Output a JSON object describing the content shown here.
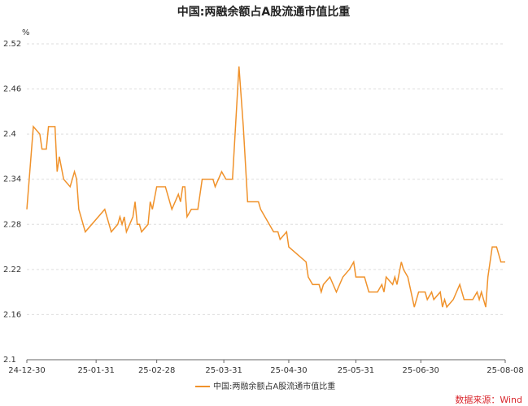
{
  "chart_data": {
    "type": "line",
    "title": "中国:两融余额占A股流通市值比重",
    "y_unit": "%",
    "source": "数据来源：Wind",
    "x": [
      0,
      3,
      6,
      7,
      9,
      10,
      13,
      14,
      15,
      17,
      20,
      22,
      23,
      24,
      27,
      36,
      39,
      42,
      43,
      44,
      45,
      46,
      49,
      50,
      51,
      52,
      53,
      56,
      57,
      58,
      60,
      64,
      67,
      70,
      71,
      72,
      73,
      74,
      76,
      79,
      81,
      86,
      87,
      90,
      92,
      95,
      98,
      100,
      102,
      107,
      108,
      110,
      112,
      114,
      116,
      117,
      120,
      121,
      129,
      130,
      132,
      135,
      136,
      137,
      140,
      143,
      146,
      149,
      151,
      152,
      156,
      158,
      162,
      164,
      165,
      166,
      169,
      170,
      171,
      173,
      174,
      176,
      179,
      181,
      184,
      185,
      187,
      188,
      191,
      192,
      193,
      194,
      197,
      200,
      202,
      206,
      208,
      209,
      210,
      212,
      213,
      215,
      217,
      218,
      219,
      221
    ],
    "series": [
      {
        "name": "中国:两融余额占A股流通市值比重",
        "color": "#f0922b",
        "values": [
          2.3,
          2.41,
          2.4,
          2.38,
          2.38,
          2.41,
          2.41,
          2.35,
          2.37,
          2.34,
          2.33,
          2.35,
          2.34,
          2.3,
          2.27,
          2.3,
          2.27,
          2.28,
          2.29,
          2.28,
          2.29,
          2.27,
          2.29,
          2.31,
          2.28,
          2.28,
          2.27,
          2.28,
          2.31,
          2.3,
          2.33,
          2.33,
          2.3,
          2.32,
          2.31,
          2.33,
          2.33,
          2.29,
          2.3,
          2.3,
          2.34,
          2.34,
          2.33,
          2.35,
          2.34,
          2.34,
          2.49,
          2.41,
          2.31,
          2.31,
          2.3,
          2.29,
          2.28,
          2.27,
          2.27,
          2.26,
          2.27,
          2.25,
          2.23,
          2.21,
          2.2,
          2.2,
          2.19,
          2.2,
          2.21,
          2.19,
          2.21,
          2.22,
          2.23,
          2.21,
          2.21,
          2.19,
          2.19,
          2.2,
          2.19,
          2.21,
          2.2,
          2.21,
          2.2,
          2.23,
          2.22,
          2.21,
          2.17,
          2.19,
          2.19,
          2.18,
          2.19,
          2.18,
          2.19,
          2.17,
          2.18,
          2.17,
          2.18,
          2.2,
          2.18,
          2.18,
          2.19,
          2.18,
          2.19,
          2.17,
          2.21,
          2.25,
          2.25,
          2.24,
          2.23,
          2.23
        ]
      }
    ],
    "xlim": [
      0,
      221
    ],
    "xticks": [
      {
        "value": 0,
        "label": "24-12-30"
      },
      {
        "value": 32,
        "label": "25-01-31"
      },
      {
        "value": 60,
        "label": "25-02-28"
      },
      {
        "value": 91,
        "label": "25-03-31"
      },
      {
        "value": 121,
        "label": "25-04-30"
      },
      {
        "value": 152,
        "label": "25-05-31"
      },
      {
        "value": 182,
        "label": "25-06-30"
      },
      {
        "value": 221,
        "label": "25-08-08"
      }
    ],
    "ylim": [
      2.1,
      2.52
    ],
    "yticks": [
      2.1,
      2.16,
      2.22,
      2.28,
      2.34,
      2.4,
      2.46,
      2.52
    ],
    "grid": true
  }
}
